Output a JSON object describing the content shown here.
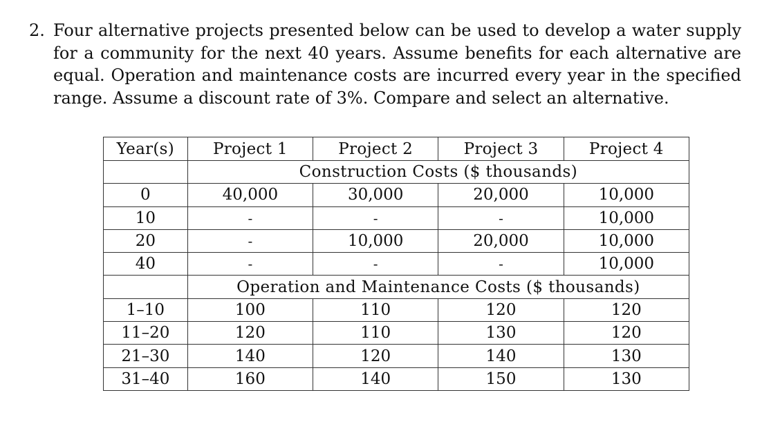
{
  "problem": {
    "number": "2.",
    "text": "Four alternative projects presented below can be used to develop a water supply for a community for the next 40 years. Assume benefits for each alternative are equal. Operation and maintenance costs are incurred every year in the specified range. Assume a discount rate of 3%. Compare and select an alternative."
  },
  "table": {
    "headers": [
      "Year(s)",
      "Project 1",
      "Project 2",
      "Project 3",
      "Project 4"
    ],
    "construction_title": "Construction Costs ($ thousands)",
    "construction_rows": [
      [
        "0",
        "40,000",
        "30,000",
        "20,000",
        "10,000"
      ],
      [
        "10",
        "-",
        "-",
        "-",
        "10,000"
      ],
      [
        "20",
        "-",
        "10,000",
        "20,000",
        "10,000"
      ],
      [
        "40",
        "-",
        "-",
        "-",
        "10,000"
      ]
    ],
    "om_title": "Operation and Maintenance Costs ($ thousands)",
    "om_rows": [
      [
        "1–10",
        "100",
        "110",
        "120",
        "120"
      ],
      [
        "11–20",
        "120",
        "110",
        "130",
        "120"
      ],
      [
        "21–30",
        "140",
        "120",
        "140",
        "130"
      ],
      [
        "31–40",
        "160",
        "140",
        "150",
        "130"
      ]
    ]
  }
}
